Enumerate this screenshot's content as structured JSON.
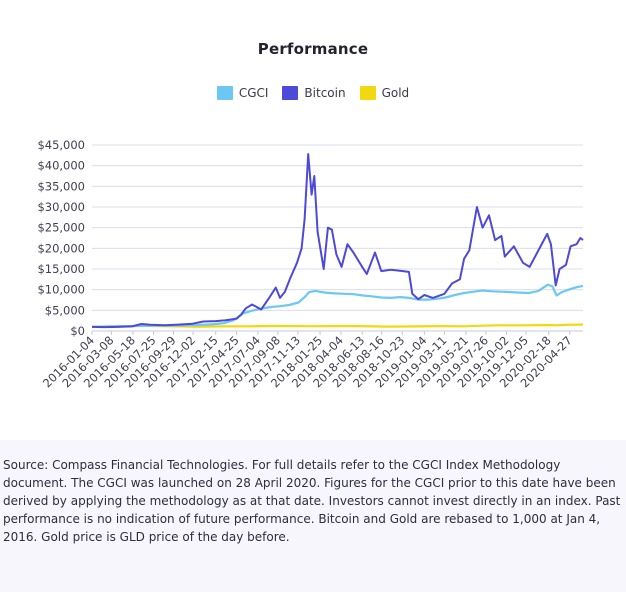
{
  "chart_data": {
    "type": "line",
    "title": "Performance",
    "xlabel": "",
    "ylabel": "",
    "ylim": [
      0,
      45000
    ],
    "yticks": [
      "$0",
      "$5,000",
      "$10,000",
      "$15,000",
      "$20,000",
      "$25,000",
      "$30,000",
      "$35,000",
      "$40,000",
      "$45,000"
    ],
    "ytick_values": [
      0,
      5000,
      10000,
      15000,
      20000,
      25000,
      30000,
      35000,
      40000,
      45000
    ],
    "xticks": [
      "2016-01-04",
      "2016-03-08",
      "2016-05-18",
      "2016-07-25",
      "2016-09-29",
      "2016-12-02",
      "2017-02-15",
      "2017-04-25",
      "2017-07-04",
      "2017-09-08",
      "2017-11-13",
      "2018-01-25",
      "2018-04-04",
      "2018-06-13",
      "2018-08-16",
      "2018-10-23",
      "2019-01-04",
      "2019-03-11",
      "2019-05-21",
      "2019-07-26",
      "2019-10-02",
      "2019-12-05",
      "2020-02-18",
      "2020-04-27"
    ],
    "x_start": "2016-01-04",
    "x_end": "2020-06-10",
    "grid": true,
    "legend_position": "top-center",
    "series": [
      {
        "name": "CGCI",
        "color": "#6cc8f2",
        "points": [
          [
            "2016-01-04",
            1000
          ],
          [
            "2016-04-01",
            1150
          ],
          [
            "2016-07-01",
            1250
          ],
          [
            "2016-10-01",
            1350
          ],
          [
            "2016-12-15",
            1450
          ],
          [
            "2017-02-01",
            1600
          ],
          [
            "2017-03-15",
            1900
          ],
          [
            "2017-04-15",
            2600
          ],
          [
            "2017-05-15",
            4200
          ],
          [
            "2017-06-15",
            4900
          ],
          [
            "2017-07-15",
            5400
          ],
          [
            "2017-08-15",
            5800
          ],
          [
            "2017-09-15",
            6000
          ],
          [
            "2017-10-15",
            6300
          ],
          [
            "2017-11-15",
            6900
          ],
          [
            "2017-12-05",
            8200
          ],
          [
            "2017-12-20",
            9400
          ],
          [
            "2018-01-10",
            9700
          ],
          [
            "2018-02-10",
            9300
          ],
          [
            "2018-03-15",
            9100
          ],
          [
            "2018-04-15",
            9000
          ],
          [
            "2018-05-15",
            8900
          ],
          [
            "2018-06-15",
            8600
          ],
          [
            "2018-07-15",
            8400
          ],
          [
            "2018-08-15",
            8100
          ],
          [
            "2018-09-15",
            8000
          ],
          [
            "2018-10-15",
            8200
          ],
          [
            "2018-11-15",
            8000
          ],
          [
            "2018-12-15",
            7600
          ],
          [
            "2019-01-15",
            7600
          ],
          [
            "2019-02-15",
            7800
          ],
          [
            "2019-03-15",
            8100
          ],
          [
            "2019-04-15",
            8700
          ],
          [
            "2019-05-15",
            9200
          ],
          [
            "2019-06-15",
            9500
          ],
          [
            "2019-07-15",
            9800
          ],
          [
            "2019-08-15",
            9600
          ],
          [
            "2019-09-15",
            9500
          ],
          [
            "2019-10-15",
            9400
          ],
          [
            "2019-11-15",
            9300
          ],
          [
            "2019-12-15",
            9200
          ],
          [
            "2020-01-15",
            9700
          ],
          [
            "2020-02-15",
            11200
          ],
          [
            "2020-03-01",
            10800
          ],
          [
            "2020-03-15",
            8600
          ],
          [
            "2020-04-01",
            9400
          ],
          [
            "2020-04-27",
            10100
          ],
          [
            "2020-05-20",
            10600
          ],
          [
            "2020-06-10",
            10900
          ]
        ]
      },
      {
        "name": "Bitcoin",
        "color": "#4d49d9",
        "points": [
          [
            "2016-01-04",
            1000
          ],
          [
            "2016-02-15",
            950
          ],
          [
            "2016-04-01",
            980
          ],
          [
            "2016-05-15",
            1120
          ],
          [
            "2016-06-15",
            1700
          ],
          [
            "2016-07-15",
            1500
          ],
          [
            "2016-09-01",
            1400
          ],
          [
            "2016-10-15",
            1540
          ],
          [
            "2016-12-01",
            1760
          ],
          [
            "2017-01-05",
            2300
          ],
          [
            "2017-02-15",
            2400
          ],
          [
            "2017-03-20",
            2600
          ],
          [
            "2017-04-25",
            3000
          ],
          [
            "2017-05-10",
            4000
          ],
          [
            "2017-05-25",
            5500
          ],
          [
            "2017-06-15",
            6400
          ],
          [
            "2017-07-15",
            5200
          ],
          [
            "2017-08-10",
            8000
          ],
          [
            "2017-09-01",
            10500
          ],
          [
            "2017-09-15",
            8000
          ],
          [
            "2017-10-01",
            9500
          ],
          [
            "2017-10-20",
            13000
          ],
          [
            "2017-11-10",
            16500
          ],
          [
            "2017-11-25",
            20000
          ],
          [
            "2017-12-05",
            27000
          ],
          [
            "2017-12-17",
            42800
          ],
          [
            "2017-12-28",
            33000
          ],
          [
            "2018-01-06",
            37500
          ],
          [
            "2018-01-17",
            24000
          ],
          [
            "2018-02-06",
            15000
          ],
          [
            "2018-02-20",
            25000
          ],
          [
            "2018-03-05",
            24500
          ],
          [
            "2018-03-20",
            18500
          ],
          [
            "2018-04-06",
            15500
          ],
          [
            "2018-04-25",
            21000
          ],
          [
            "2018-05-15",
            19000
          ],
          [
            "2018-06-13",
            15500
          ],
          [
            "2018-06-28",
            13800
          ],
          [
            "2018-07-25",
            19000
          ],
          [
            "2018-08-15",
            14500
          ],
          [
            "2018-09-15",
            14800
          ],
          [
            "2018-10-15",
            14600
          ],
          [
            "2018-11-14",
            14300
          ],
          [
            "2018-11-25",
            9000
          ],
          [
            "2018-12-15",
            7700
          ],
          [
            "2019-01-04",
            8700
          ],
          [
            "2019-02-01",
            8000
          ],
          [
            "2019-03-11",
            9000
          ],
          [
            "2019-04-05",
            11500
          ],
          [
            "2019-05-01",
            12500
          ],
          [
            "2019-05-15",
            17500
          ],
          [
            "2019-06-01",
            19500
          ],
          [
            "2019-06-26",
            30000
          ],
          [
            "2019-07-15",
            25000
          ],
          [
            "2019-08-05",
            28000
          ],
          [
            "2019-08-25",
            22000
          ],
          [
            "2019-09-15",
            23000
          ],
          [
            "2019-09-26",
            18000
          ],
          [
            "2019-10-26",
            20500
          ],
          [
            "2019-11-25",
            16500
          ],
          [
            "2019-12-17",
            15500
          ],
          [
            "2020-01-15",
            19500
          ],
          [
            "2020-02-13",
            23500
          ],
          [
            "2020-02-25",
            21000
          ],
          [
            "2020-03-12",
            11000
          ],
          [
            "2020-03-25",
            15000
          ],
          [
            "2020-04-15",
            16000
          ],
          [
            "2020-04-30",
            20500
          ],
          [
            "2020-05-20",
            21000
          ],
          [
            "2020-06-01",
            22500
          ],
          [
            "2020-06-10",
            22000
          ]
        ]
      },
      {
        "name": "Gold",
        "color": "#f2d80f",
        "points": [
          [
            "2016-01-04",
            1000
          ],
          [
            "2016-03-01",
            1120
          ],
          [
            "2016-07-01",
            1220
          ],
          [
            "2016-10-01",
            1140
          ],
          [
            "2016-12-15",
            1020
          ],
          [
            "2017-03-01",
            1110
          ],
          [
            "2017-06-01",
            1140
          ],
          [
            "2017-09-01",
            1200
          ],
          [
            "2017-12-15",
            1150
          ],
          [
            "2018-03-01",
            1190
          ],
          [
            "2018-06-01",
            1180
          ],
          [
            "2018-09-01",
            1070
          ],
          [
            "2018-12-15",
            1120
          ],
          [
            "2019-03-01",
            1190
          ],
          [
            "2019-05-15",
            1140
          ],
          [
            "2019-07-01",
            1260
          ],
          [
            "2019-09-01",
            1380
          ],
          [
            "2019-12-01",
            1370
          ],
          [
            "2020-02-15",
            1440
          ],
          [
            "2020-03-15",
            1380
          ],
          [
            "2020-04-27",
            1530
          ],
          [
            "2020-06-10",
            1560
          ]
        ]
      }
    ]
  },
  "source_note": "Source: Compass Financial Technologies. For full details refer to the CGCI Index Methodology document. The CGCI was launched on 28 April 2020. Figures for the CGCI prior to this date have been derived by applying the methodology as at that date. Investors cannot invest directly in an index. Past performance is no indication of future performance. Bitcoin and Gold are rebased to 1,000 at Jan 4, 2016. Gold price is GLD price of the day before."
}
